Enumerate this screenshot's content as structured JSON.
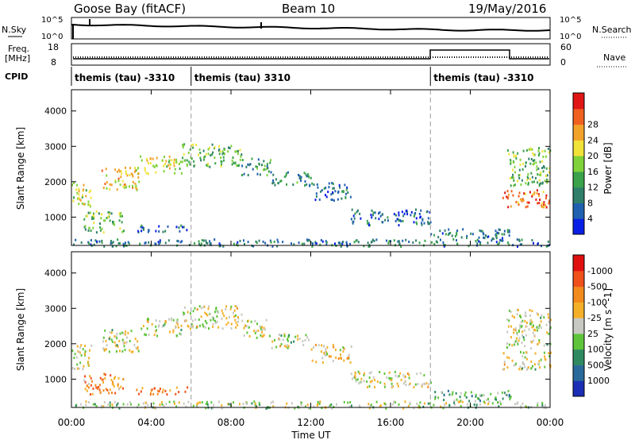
{
  "header": {
    "station": "Goose Bay (fitACF)",
    "beam": "Beam 10",
    "date": "19/May/2016"
  },
  "status_panel": {
    "nsky_label": "N.Sky",
    "nsearch_label": "N.Search",
    "freq_label_1": "Freq.",
    "freq_label_2": "[MHz]",
    "nave_label": "Nave",
    "cpid_label": "CPID",
    "noise_ticks": [
      "10^5",
      "10^0"
    ],
    "freq_ticks": [
      "18",
      "8"
    ],
    "nave_ticks": [
      "60",
      "0"
    ],
    "cpid_segments": [
      {
        "start_hour": 0,
        "end_hour": 6,
        "label": "themis (tau) -3310"
      },
      {
        "start_hour": 6,
        "end_hour": 18,
        "label": "themis (tau) 3310"
      },
      {
        "start_hour": 18,
        "end_hour": 24,
        "label": "themis (tau) -3310"
      }
    ]
  },
  "chart_data": [
    {
      "type": "heatmap",
      "title": "Power",
      "ylabel": "Slant Range [km]",
      "xlabel": "",
      "xlim": [
        0,
        24
      ],
      "ylim": [
        200,
        4600
      ],
      "yticks": [
        "1000",
        "2000",
        "3000",
        "4000"
      ],
      "colorbar": {
        "label": "Power [dB]",
        "ticks": [
          "4",
          "8",
          "12",
          "16",
          "20",
          "24",
          "28"
        ],
        "colors": [
          "#0a1fe6",
          "#2060b0",
          "#2f7f6a",
          "#3aa24a",
          "#7fd23a",
          "#f1e23a",
          "#f2a12a",
          "#f0601f",
          "#e01515"
        ]
      },
      "regions": [
        {
          "t0": 0.0,
          "t1": 1.0,
          "r0": 1300,
          "r1": 2000,
          "level": 0.55
        },
        {
          "t0": 0.6,
          "t1": 2.6,
          "r0": 600,
          "r1": 1200,
          "level": 0.45
        },
        {
          "t0": 1.5,
          "t1": 3.4,
          "r0": 1800,
          "r1": 2450,
          "level": 0.65
        },
        {
          "t0": 3.4,
          "t1": 5.5,
          "r0": 2250,
          "r1": 2750,
          "level": 0.6
        },
        {
          "t0": 5.5,
          "t1": 8.5,
          "r0": 2450,
          "r1": 3100,
          "level": 0.45
        },
        {
          "t0": 8.5,
          "t1": 10.0,
          "r0": 2200,
          "r1": 2700,
          "level": 0.35
        },
        {
          "t0": 10.0,
          "t1": 12.0,
          "r0": 1900,
          "r1": 2300,
          "level": 0.3
        },
        {
          "t0": 12.0,
          "t1": 14.0,
          "r0": 1500,
          "r1": 2000,
          "level": 0.2
        },
        {
          "t0": 14.0,
          "t1": 18.0,
          "r0": 800,
          "r1": 1250,
          "level": 0.2
        },
        {
          "t0": 3.0,
          "t1": 5.8,
          "r0": 600,
          "r1": 800,
          "level": 0.2
        },
        {
          "t0": 18.0,
          "t1": 22.0,
          "r0": 400,
          "r1": 700,
          "level": 0.25
        },
        {
          "t0": 21.6,
          "t1": 24.0,
          "r0": 1300,
          "r1": 1800,
          "level": 0.8
        },
        {
          "t0": 21.8,
          "t1": 24.0,
          "r0": 1900,
          "r1": 3000,
          "level": 0.45
        },
        {
          "t0": 0.0,
          "t1": 24.0,
          "r0": 200,
          "r1": 400,
          "level": 0.25
        }
      ]
    },
    {
      "type": "heatmap",
      "title": "Velocity",
      "ylabel": "Slant Range [km]",
      "xlabel": "Time UT",
      "xlim": [
        0,
        24
      ],
      "ylim": [
        200,
        4600
      ],
      "xticks": [
        "00:00",
        "04:00",
        "08:00",
        "12:00",
        "16:00",
        "20:00",
        "00:00"
      ],
      "yticks": [
        "1000",
        "2000",
        "3000",
        "4000"
      ],
      "colorbar": {
        "label": "Velocity [m s^-1]",
        "ticks": [
          "1000",
          "500",
          "100",
          "25",
          "-25",
          "-100",
          "-500",
          "-1000"
        ],
        "colors": [
          "#1a2fb5",
          "#2a6a9a",
          "#2f8a62",
          "#5ec43a",
          "#c8c8c2",
          "#f5b02a",
          "#f28a1e",
          "#f0501a",
          "#e01010"
        ]
      },
      "regions": [
        {
          "t0": 0.0,
          "t1": 1.0,
          "r0": 1300,
          "r1": 2000,
          "level": 0.5
        },
        {
          "t0": 0.6,
          "t1": 2.6,
          "r0": 600,
          "r1": 1200,
          "level": 0.7
        },
        {
          "t0": 1.5,
          "t1": 3.4,
          "r0": 1800,
          "r1": 2450,
          "level": 0.5
        },
        {
          "t0": 3.4,
          "t1": 5.5,
          "r0": 2250,
          "r1": 2750,
          "level": 0.5
        },
        {
          "t0": 5.5,
          "t1": 8.5,
          "r0": 2450,
          "r1": 3100,
          "level": 0.5
        },
        {
          "t0": 8.5,
          "t1": 10.0,
          "r0": 2200,
          "r1": 2700,
          "level": 0.5
        },
        {
          "t0": 10.0,
          "t1": 12.0,
          "r0": 1900,
          "r1": 2300,
          "level": 0.5
        },
        {
          "t0": 12.0,
          "t1": 14.0,
          "r0": 1500,
          "r1": 2000,
          "level": 0.55
        },
        {
          "t0": 14.0,
          "t1": 18.0,
          "r0": 800,
          "r1": 1250,
          "level": 0.5
        },
        {
          "t0": 3.0,
          "t1": 5.8,
          "r0": 600,
          "r1": 800,
          "level": 0.75
        },
        {
          "t0": 18.0,
          "t1": 22.0,
          "r0": 400,
          "r1": 700,
          "level": 0.35
        },
        {
          "t0": 21.6,
          "t1": 24.0,
          "r0": 1300,
          "r1": 1800,
          "level": 0.5
        },
        {
          "t0": 21.8,
          "t1": 24.0,
          "r0": 1900,
          "r1": 3000,
          "level": 0.5
        },
        {
          "t0": 0.0,
          "t1": 24.0,
          "r0": 200,
          "r1": 400,
          "level": 0.45
        }
      ]
    }
  ]
}
